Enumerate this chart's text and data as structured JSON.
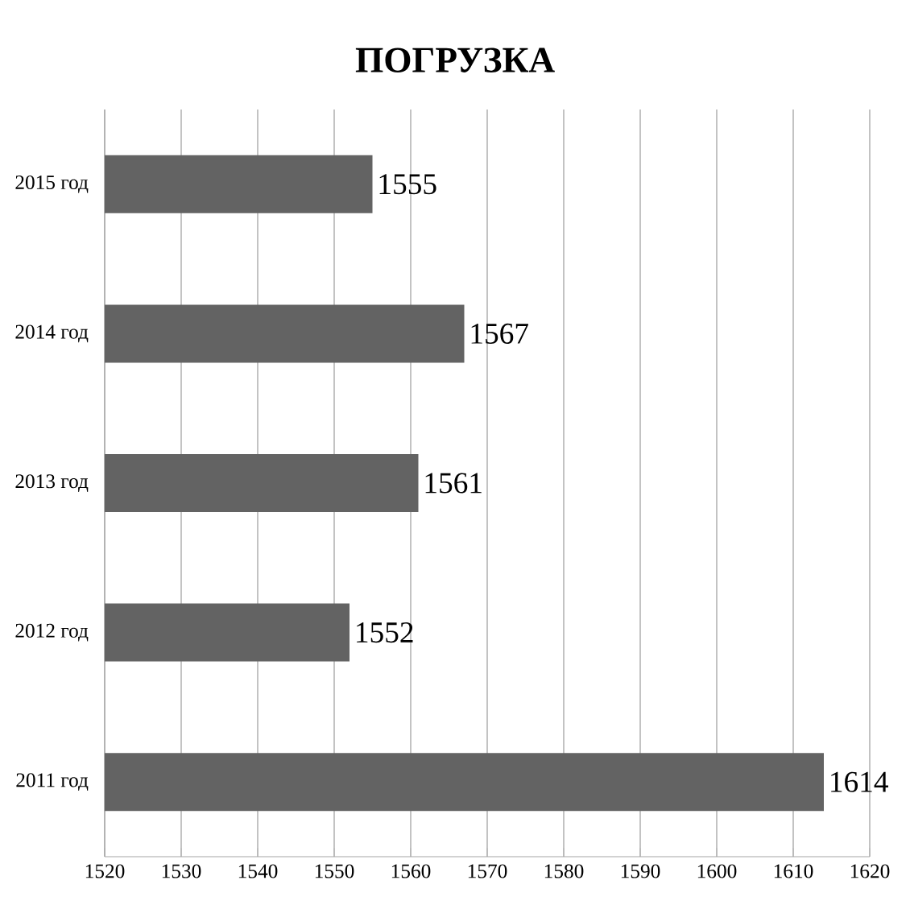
{
  "chart_data": {
    "type": "bar",
    "orientation": "horizontal",
    "title": "ПОГРУЗКА",
    "categories": [
      "2015 год",
      "2014 год",
      "2013 год",
      "2012 год",
      "2011 год"
    ],
    "values": [
      1555,
      1567,
      1561,
      1552,
      1614
    ],
    "color": "#636363",
    "xlim": [
      1520,
      1620
    ],
    "xticks": [
      1520,
      1530,
      1540,
      1550,
      1560,
      1570,
      1580,
      1590,
      1600,
      1610,
      1620
    ],
    "grid": "x",
    "data_labels": true
  }
}
